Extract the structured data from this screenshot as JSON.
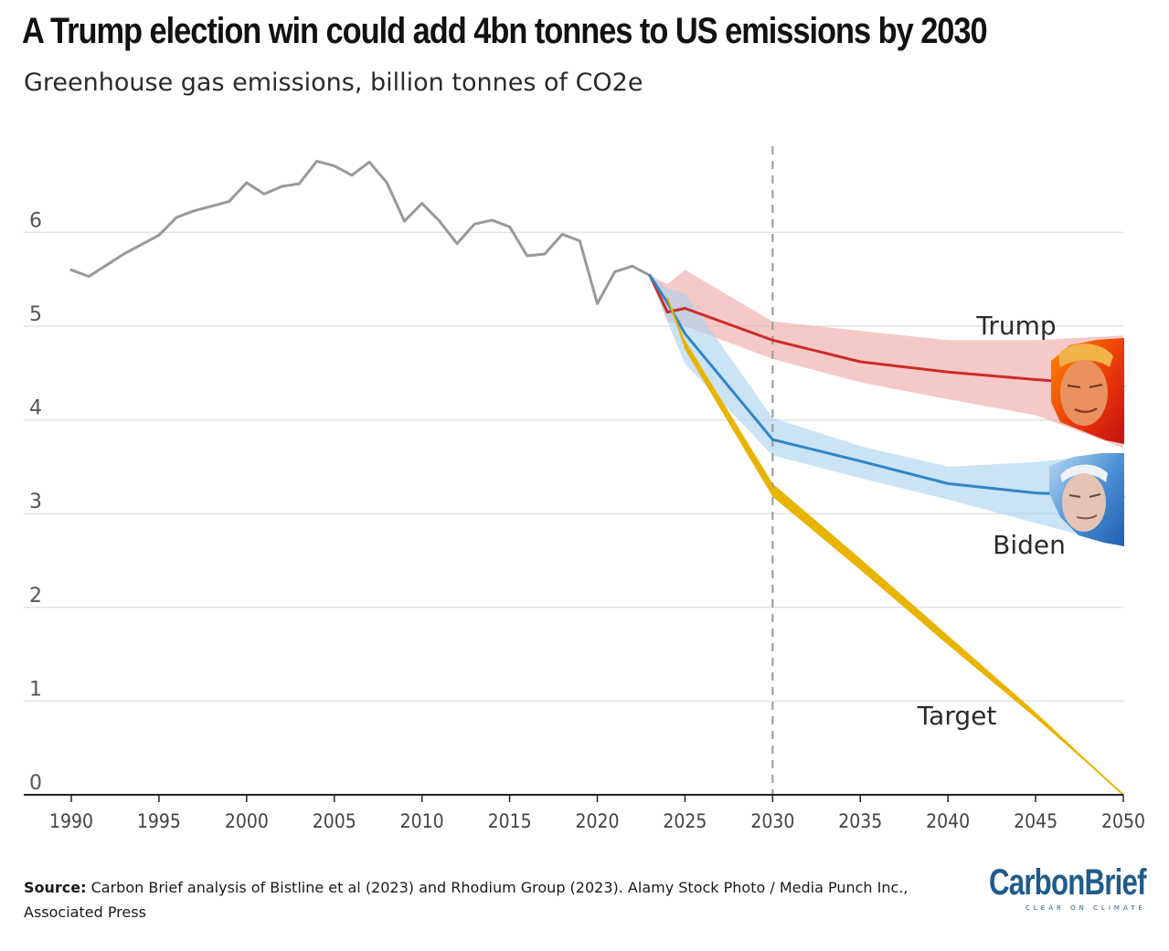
{
  "header": {
    "title": "A Trump election win could add 4bn tonnes to US emissions by 2030",
    "subtitle": "Greenhouse gas emissions, billion tonnes of CO2e"
  },
  "footer": {
    "source_label": "Source:",
    "source_text": "Carbon Brief analysis of Bistline et al (2023) and Rhodium Group (2023). Alamy Stock Photo / Media Punch Inc., Associated Press"
  },
  "logo": {
    "name": "CarbonBrief",
    "tagline": "CLEAR ON CLIMATE"
  },
  "chart_data": {
    "type": "line",
    "title": "A Trump election win could add 4bn tonnes to US emissions by 2030",
    "subtitle": "Greenhouse gas emissions, billion tonnes of CO2e",
    "xlabel": "",
    "ylabel": "",
    "xlim": [
      1990,
      2050
    ],
    "ylim": [
      0,
      7
    ],
    "xticks": [
      1990,
      1995,
      2000,
      2005,
      2010,
      2015,
      2020,
      2025,
      2030,
      2035,
      2040,
      2045,
      2050
    ],
    "yticks": [
      0,
      1,
      2,
      3,
      4,
      5,
      6
    ],
    "grid": "horizontal",
    "legend": "direct labels at line ends",
    "reference_line": {
      "x": 2030,
      "style": "dashed",
      "color": "#999999"
    },
    "series": [
      {
        "name": "",
        "color": "#999999",
        "x": [
          1990,
          1991,
          1992,
          1993,
          1994,
          1995,
          1996,
          1997,
          1998,
          1999,
          2000,
          2001,
          2002,
          2003,
          2004,
          2005,
          2006,
          2007,
          2008,
          2009,
          2010,
          2011,
          2012,
          2013,
          2014,
          2015,
          2016,
          2017,
          2018,
          2019,
          2020,
          2021,
          2022,
          2023
        ],
        "y": [
          5.6,
          5.53,
          5.65,
          5.77,
          5.87,
          5.97,
          6.16,
          6.23,
          6.28,
          6.33,
          6.53,
          6.41,
          6.49,
          6.52,
          6.76,
          6.71,
          6.61,
          6.75,
          6.53,
          6.12,
          6.31,
          6.12,
          5.88,
          6.09,
          6.13,
          6.06,
          5.75,
          5.77,
          5.98,
          5.91,
          5.24,
          5.58,
          5.64,
          5.54
        ]
      },
      {
        "name": "Trump",
        "color": "#cc2b2b",
        "band_color": "#f0a8a8",
        "x": [
          2023,
          2024,
          2025,
          2030,
          2035,
          2040,
          2045,
          2050
        ],
        "y": [
          5.54,
          5.15,
          5.19,
          4.85,
          4.62,
          4.51,
          4.43,
          4.36
        ],
        "upper": [
          5.54,
          5.45,
          5.6,
          5.05,
          4.95,
          4.85,
          4.85,
          4.9
        ],
        "lower": [
          5.54,
          5.05,
          5.0,
          4.65,
          4.4,
          4.22,
          4.05,
          3.7
        ]
      },
      {
        "name": "Biden",
        "color": "#2f86c4",
        "band_color": "#a9d2ef",
        "x": [
          2023,
          2024,
          2025,
          2030,
          2035,
          2040,
          2045,
          2050
        ],
        "y": [
          5.54,
          5.25,
          4.92,
          3.79,
          3.56,
          3.32,
          3.22,
          3.18
        ],
        "upper": [
          5.54,
          5.4,
          5.35,
          4.02,
          3.72,
          3.5,
          3.55,
          3.65
        ],
        "lower": [
          5.54,
          5.05,
          4.6,
          3.62,
          3.38,
          3.15,
          2.9,
          2.65
        ]
      },
      {
        "name": "Target",
        "color": "#e8b400",
        "x": [
          2024,
          2025,
          2030,
          2035,
          2040,
          2045,
          2050
        ],
        "y": [
          5.3,
          4.8,
          3.25,
          2.45,
          1.65,
          0.85,
          0.0
        ],
        "upper": [
          5.3,
          4.85,
          3.32,
          2.52,
          1.7,
          0.88,
          0.0
        ],
        "lower": [
          5.3,
          4.75,
          3.18,
          2.4,
          1.6,
          0.82,
          0.0
        ]
      }
    ]
  }
}
